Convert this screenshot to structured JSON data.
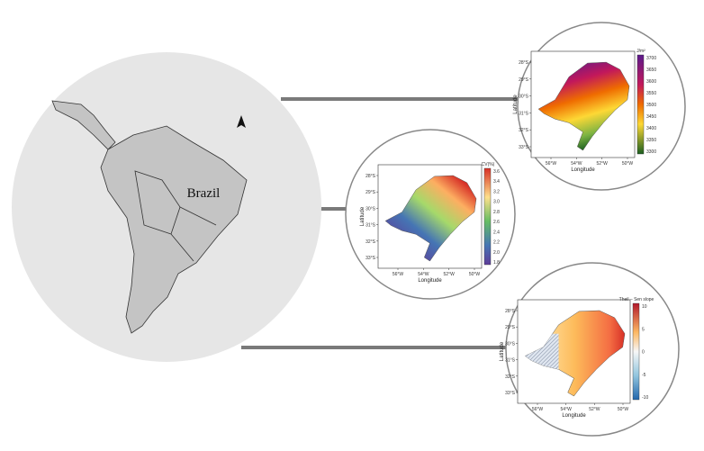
{
  "figure": {
    "region_label": "Brazil",
    "maps": [
      {
        "legend_title": "J/m²",
        "colorbar_ticks": [
          "3700",
          "3650",
          "3600",
          "3550",
          "3500",
          "3450",
          "3400",
          "3350",
          "3300"
        ],
        "lat_ticks": [
          "28°S",
          "29°S",
          "30°S",
          "31°S",
          "32°S",
          "33°S"
        ],
        "lon_ticks": [
          "56°W",
          "54°W",
          "52°W",
          "50°W"
        ],
        "x_label": "Longitude",
        "y_label": "Latitude"
      },
      {
        "legend_title": "CV(%)",
        "colorbar_ticks": [
          "3.6",
          "3.4",
          "3.2",
          "3.0",
          "2.8",
          "2.6",
          "2.4",
          "2.2",
          "2.0",
          "1.8"
        ],
        "lat_ticks": [
          "28°S",
          "29°S",
          "30°S",
          "31°S",
          "32°S",
          "33°S"
        ],
        "lon_ticks": [
          "56°W",
          "54°W",
          "52°W",
          "50°W"
        ],
        "x_label": "Longitude",
        "y_label": "Latitude"
      },
      {
        "legend_title": "Theil – Sen slope",
        "colorbar_ticks": [
          "10",
          "5",
          "0",
          "-5",
          "-10"
        ],
        "lat_ticks": [
          "28°S",
          "29°S",
          "30°S",
          "31°S",
          "32°S",
          "33°S"
        ],
        "lon_ticks": [
          "56°W",
          "54°W",
          "52°W",
          "50°W"
        ],
        "x_label": "Longitude",
        "y_label": "Latitude"
      }
    ]
  }
}
